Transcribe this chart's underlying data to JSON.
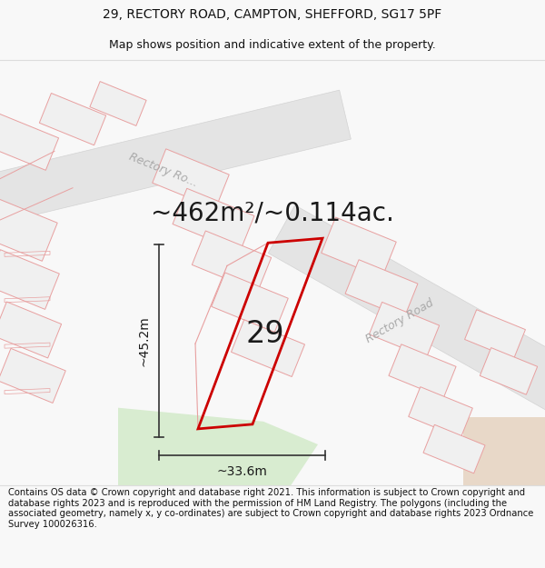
{
  "title_line1": "29, RECTORY ROAD, CAMPTON, SHEFFORD, SG17 5PF",
  "title_line2": "Map shows position and indicative extent of the property.",
  "area_label": "~462m²/~0.114ac.",
  "property_number": "29",
  "dim_vertical": "~45.2m",
  "dim_horizontal": "~33.6m",
  "road_label_upper": "Rectory Ro...",
  "road_label_lower": "Rectory Road",
  "footer_text": "Contains OS data © Crown copyright and database right 2021. This information is subject to Crown copyright and database rights 2023 and is reproduced with the permission of HM Land Registry. The polygons (including the associated geometry, namely x, y co-ordinates) are subject to Crown copyright and database rights 2023 Ordnance Survey 100026316.",
  "bg_color": "#f8f8f8",
  "map_bg": "#ffffff",
  "highlight_color": "#cc0000",
  "road_fill": "#e0e0e0",
  "plot_outline": "#e8a0a0",
  "plot_fill": "#f0f0f0",
  "green_fill": "#d8ecd0",
  "tan_fill": "#e8d8c8",
  "footer_bg": "#f0f0f0",
  "title_fontsize": 10,
  "subtitle_fontsize": 9,
  "area_fontsize": 20,
  "property_num_fontsize": 24,
  "dim_fontsize": 10,
  "road_fontsize": 9,
  "footer_fontsize": 7.2
}
